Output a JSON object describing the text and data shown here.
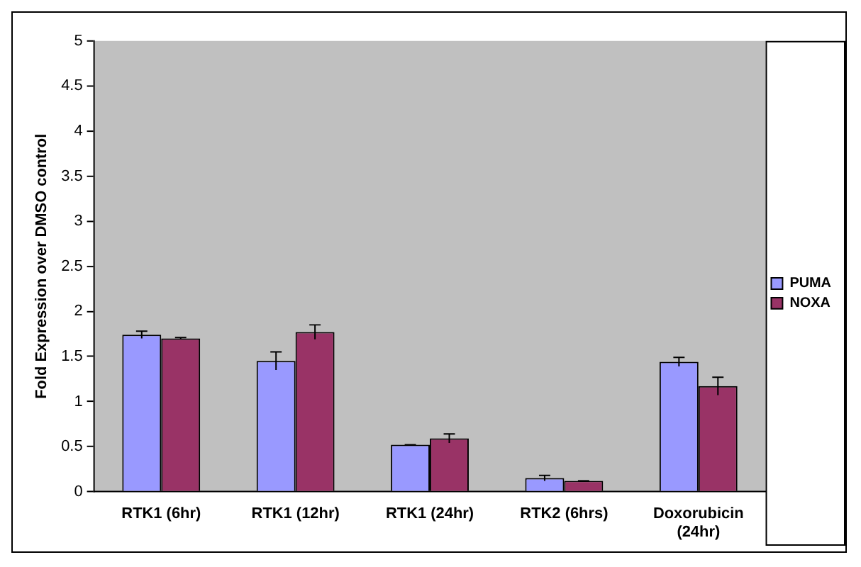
{
  "chart_data": {
    "type": "bar",
    "ylabel": "Fold Expression over DMSO control",
    "categories": [
      "RTK1 (6hr)",
      "RTK1 (12hr)",
      "RTK1 (24hr)",
      "RTK2 (6hrs)",
      "Doxorubicin (24hr)"
    ],
    "series": [
      {
        "name": "PUMA",
        "color": "#9999ff",
        "values": [
          1.74,
          1.45,
          0.52,
          0.15,
          1.44
        ],
        "errors": [
          0.04,
          0.1,
          0,
          0.03,
          0.05
        ]
      },
      {
        "name": "NOXA",
        "color": "#993366",
        "values": [
          1.7,
          1.77,
          0.59,
          0.12,
          1.17
        ],
        "errors": [
          0.01,
          0.08,
          0.05,
          0,
          0.1
        ]
      }
    ],
    "ylim": [
      0,
      5
    ],
    "yticks": [
      0,
      0.5,
      1,
      1.5,
      2,
      2.5,
      3,
      3.5,
      4,
      4.5,
      5
    ],
    "grid": false,
    "legend": "right"
  }
}
